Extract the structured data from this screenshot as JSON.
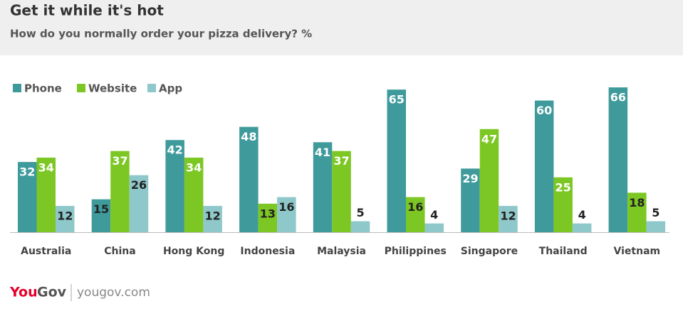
{
  "chart_data": {
    "type": "bar",
    "title": "Get it while it's hot",
    "subtitle": "How do you normally order your pizza delivery? %",
    "categories": [
      "Australia",
      "China",
      "Hong Kong",
      "Indonesia",
      "Malaysia",
      "Philippines",
      "Singapore",
      "Thailand",
      "Vietnam"
    ],
    "series": [
      {
        "name": "Phone",
        "color": "#3f9a9b",
        "values": [
          32,
          15,
          42,
          48,
          41,
          65,
          29,
          60,
          66
        ]
      },
      {
        "name": "Website",
        "color": "#7cc723",
        "values": [
          34,
          37,
          34,
          13,
          37,
          16,
          47,
          25,
          18
        ]
      },
      {
        "name": "App",
        "color": "#8fc8ca",
        "values": [
          12,
          26,
          12,
          16,
          5,
          4,
          12,
          4,
          5
        ]
      }
    ],
    "legend": "top-left",
    "footer": {
      "brand_you": "You",
      "brand_gov": "Gov",
      "site": "yougov.com"
    }
  }
}
